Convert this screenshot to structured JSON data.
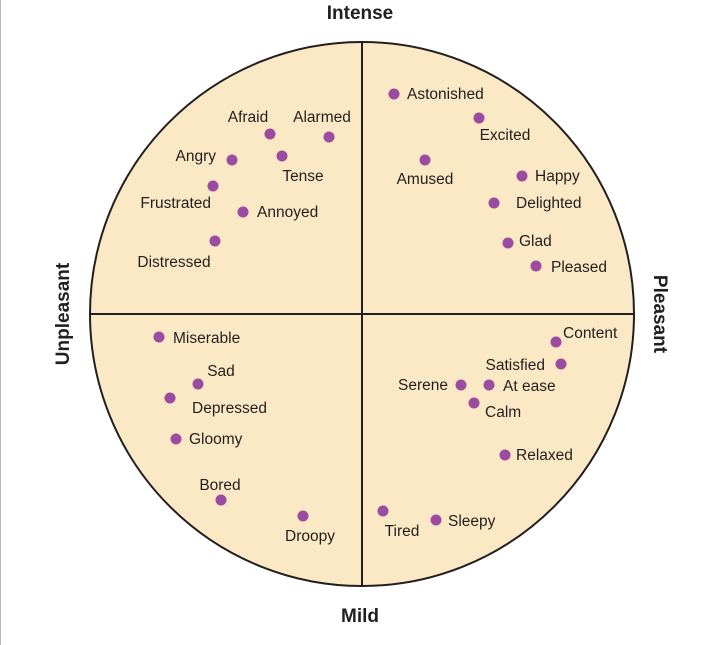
{
  "colors": {
    "circle_fill": "#fbe8c4",
    "outline": "#231f20",
    "dot": "#9b4ba0",
    "text": "#231f20"
  },
  "axes": {
    "top": "Intense",
    "bottom": "Mild",
    "left": "Unpleasant",
    "right": "Pleasant"
  },
  "quadrants": {
    "intense_unpleasant": [
      {
        "key": "afraid",
        "label": "Afraid"
      },
      {
        "key": "alarmed",
        "label": "Alarmed"
      },
      {
        "key": "angry",
        "label": "Angry"
      },
      {
        "key": "tense",
        "label": "Tense"
      },
      {
        "key": "frustrated",
        "label": "Frustrated"
      },
      {
        "key": "annoyed",
        "label": "Annoyed"
      },
      {
        "key": "distressed",
        "label": "Distressed"
      }
    ],
    "intense_pleasant": [
      {
        "key": "astonished",
        "label": "Astonished"
      },
      {
        "key": "excited",
        "label": "Excited"
      },
      {
        "key": "amused",
        "label": "Amused"
      },
      {
        "key": "happy",
        "label": "Happy"
      },
      {
        "key": "delighted",
        "label": "Delighted"
      },
      {
        "key": "glad",
        "label": "Glad"
      },
      {
        "key": "pleased",
        "label": "Pleased"
      }
    ],
    "mild_unpleasant": [
      {
        "key": "miserable",
        "label": "Miserable"
      },
      {
        "key": "sad",
        "label": "Sad"
      },
      {
        "key": "depressed",
        "label": "Depressed"
      },
      {
        "key": "gloomy",
        "label": "Gloomy"
      },
      {
        "key": "bored",
        "label": "Bored"
      },
      {
        "key": "droopy",
        "label": "Droopy"
      }
    ],
    "mild_pleasant": [
      {
        "key": "content",
        "label": "Content"
      },
      {
        "key": "satisfied",
        "label": "Satisfied"
      },
      {
        "key": "serene",
        "label": "Serene"
      },
      {
        "key": "at-ease",
        "label": "At ease"
      },
      {
        "key": "calm",
        "label": "Calm"
      },
      {
        "key": "relaxed",
        "label": "Relaxed"
      },
      {
        "key": "tired",
        "label": "Tired"
      },
      {
        "key": "sleepy",
        "label": "Sleepy"
      }
    ]
  }
}
